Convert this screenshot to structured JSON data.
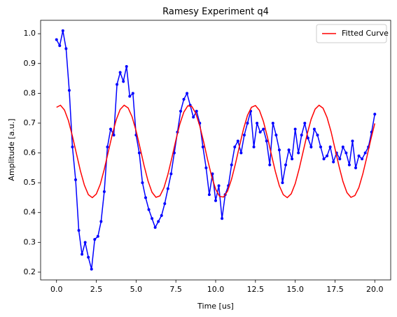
{
  "chart_data": {
    "type": "line",
    "title": "Ramesy Experiment q4",
    "xlabel": "Time [us]",
    "ylabel": "Amplitude [a.u.]",
    "xlim": [
      -1,
      21
    ],
    "ylim": [
      0.174,
      1.045
    ],
    "xticks": [
      {
        "value": 0,
        "label": "0.0"
      },
      {
        "value": 2.5,
        "label": "2.5"
      },
      {
        "value": 5,
        "label": "5.0"
      },
      {
        "value": 7.5,
        "label": "7.5"
      },
      {
        "value": 10,
        "label": "10.0"
      },
      {
        "value": 12.5,
        "label": "12.5"
      },
      {
        "value": 15,
        "label": "15.0"
      },
      {
        "value": 17.5,
        "label": "17.5"
      },
      {
        "value": 20,
        "label": "20.0"
      }
    ],
    "yticks": [
      {
        "value": 0.2,
        "label": "0.2"
      },
      {
        "value": 0.3,
        "label": "0.3"
      },
      {
        "value": 0.4,
        "label": "0.4"
      },
      {
        "value": 0.5,
        "label": "0.5"
      },
      {
        "value": 0.6,
        "label": "0.6"
      },
      {
        "value": 0.7,
        "label": "0.7"
      },
      {
        "value": 0.8,
        "label": "0.8"
      },
      {
        "value": 0.9,
        "label": "0.9"
      },
      {
        "value": 1.0,
        "label": "1.0"
      }
    ],
    "legend": "upper right",
    "series": [
      {
        "color": "#0000ff",
        "markers": true,
        "x": [
          0,
          0.2,
          0.4,
          0.6,
          0.8,
          1,
          1.2,
          1.4,
          1.6,
          1.8,
          2,
          2.2,
          2.4,
          2.6,
          2.8,
          3,
          3.2,
          3.4,
          3.6,
          3.8,
          4,
          4.2,
          4.4,
          4.6,
          4.8,
          5,
          5.2,
          5.4,
          5.6,
          5.8,
          6,
          6.2,
          6.4,
          6.6,
          6.8,
          7,
          7.2,
          7.4,
          7.6,
          7.8,
          8,
          8.2,
          8.4,
          8.6,
          8.8,
          9,
          9.2,
          9.4,
          9.6,
          9.8,
          10,
          10.2,
          10.4,
          10.6,
          10.8,
          11,
          11.2,
          11.4,
          11.6,
          11.8,
          12,
          12.2,
          12.4,
          12.6,
          12.8,
          13,
          13.2,
          13.4,
          13.6,
          13.8,
          14,
          14.2,
          14.4,
          14.6,
          14.8,
          15,
          15.2,
          15.4,
          15.6,
          15.8,
          16,
          16.2,
          16.4,
          16.6,
          16.8,
          17,
          17.2,
          17.4,
          17.6,
          17.8,
          18,
          18.2,
          18.4,
          18.6,
          18.8,
          19,
          19.2,
          19.4,
          19.6,
          19.8,
          20
        ],
        "values": [
          0.98,
          0.96,
          1.01,
          0.95,
          0.81,
          0.62,
          0.51,
          0.34,
          0.26,
          0.3,
          0.25,
          0.21,
          0.31,
          0.32,
          0.37,
          0.47,
          0.62,
          0.68,
          0.66,
          0.83,
          0.87,
          0.84,
          0.89,
          0.79,
          0.8,
          0.66,
          0.6,
          0.5,
          0.45,
          0.41,
          0.38,
          0.35,
          0.37,
          0.39,
          0.43,
          0.48,
          0.53,
          0.6,
          0.67,
          0.74,
          0.78,
          0.8,
          0.76,
          0.72,
          0.74,
          0.7,
          0.62,
          0.55,
          0.46,
          0.53,
          0.44,
          0.49,
          0.38,
          0.46,
          0.49,
          0.56,
          0.62,
          0.64,
          0.6,
          0.66,
          0.7,
          0.74,
          0.62,
          0.7,
          0.67,
          0.68,
          0.64,
          0.56,
          0.7,
          0.66,
          0.61,
          0.5,
          0.56,
          0.61,
          0.58,
          0.68,
          0.6,
          0.66,
          0.7,
          0.65,
          0.62,
          0.68,
          0.66,
          0.62,
          0.58,
          0.59,
          0.62,
          0.57,
          0.6,
          0.58,
          0.62,
          0.6,
          0.56,
          0.64,
          0.55,
          0.59,
          0.58,
          0.6,
          0.62,
          0.67,
          0.73
        ]
      },
      {
        "name": "Fitted Curve",
        "color": "#ff0000",
        "markers": false,
        "x": [
          0,
          0.25,
          0.5,
          0.75,
          1,
          1.25,
          1.5,
          1.75,
          2,
          2.25,
          2.5,
          2.75,
          3,
          3.25,
          3.5,
          3.75,
          4,
          4.25,
          4.5,
          4.75,
          5,
          5.25,
          5.5,
          5.75,
          6,
          6.25,
          6.5,
          6.75,
          7,
          7.25,
          7.5,
          7.75,
          8,
          8.25,
          8.5,
          8.75,
          9,
          9.25,
          9.5,
          9.75,
          10,
          10.25,
          10.5,
          10.75,
          11,
          11.25,
          11.5,
          11.75,
          12,
          12.25,
          12.5,
          12.75,
          13,
          13.25,
          13.5,
          13.75,
          14,
          14.25,
          14.5,
          14.75,
          15,
          15.25,
          15.5,
          15.75,
          16,
          16.25,
          16.5,
          16.75,
          17,
          17.25,
          17.5,
          17.75,
          18,
          18.25,
          18.5,
          18.75,
          19,
          19.25,
          19.5,
          19.75,
          20
        ],
        "values": [
          0.753,
          0.76,
          0.744,
          0.708,
          0.656,
          0.598,
          0.54,
          0.492,
          0.46,
          0.45,
          0.462,
          0.495,
          0.545,
          0.603,
          0.661,
          0.711,
          0.746,
          0.76,
          0.751,
          0.721,
          0.674,
          0.617,
          0.558,
          0.506,
          0.468,
          0.451,
          0.456,
          0.483,
          0.528,
          0.584,
          0.643,
          0.697,
          0.737,
          0.758,
          0.756,
          0.733,
          0.691,
          0.636,
          0.576,
          0.521,
          0.478,
          0.454,
          0.452,
          0.472,
          0.512,
          0.565,
          0.624,
          0.68,
          0.726,
          0.753,
          0.759,
          0.743,
          0.706,
          0.654,
          0.595,
          0.538,
          0.49,
          0.46,
          0.45,
          0.463,
          0.497,
          0.547,
          0.605,
          0.663,
          0.713,
          0.747,
          0.76,
          0.75,
          0.719,
          0.672,
          0.614,
          0.556,
          0.504,
          0.467,
          0.451,
          0.457,
          0.484,
          0.53,
          0.586,
          0.645,
          0.699
        ]
      }
    ]
  }
}
